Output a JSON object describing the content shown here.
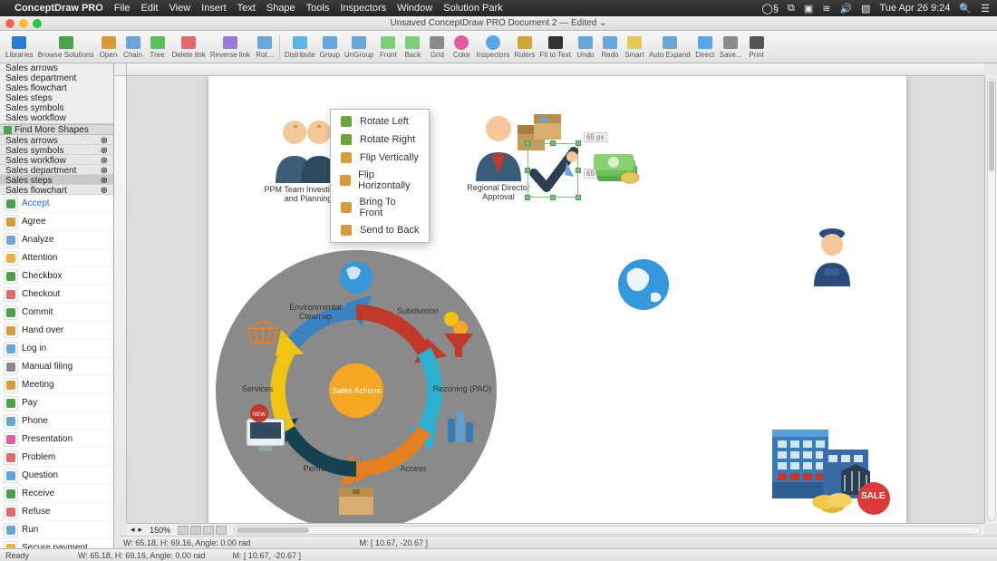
{
  "menubar": {
    "app": "ConceptDraw PRO",
    "items": [
      "File",
      "Edit",
      "View",
      "Insert",
      "Text",
      "Shape",
      "Tools",
      "Inspectors",
      "Window",
      "Solution Park"
    ],
    "clock": "Tue Apr 26  9:24"
  },
  "doc_title": "Unsaved ConceptDraw PRO Document 2 — Edited ⌄",
  "toolbar": [
    {
      "label": "Libraries",
      "color": "#2a7bd4"
    },
    {
      "label": "Browse Solutions",
      "color": "#4aa34a"
    },
    {
      "label": "Open",
      "color": "#d79b3a"
    },
    {
      "label": "Chain",
      "color": "#6aa6d8"
    },
    {
      "label": "Tree",
      "color": "#5bbf5b"
    },
    {
      "label": "Delete link",
      "color": "#e06a6a"
    },
    {
      "label": "Reverse link",
      "color": "#9a7bd4"
    },
    {
      "label": "Rot...",
      "color": "#6aa6d8"
    },
    {
      "label": "",
      "color": "#777",
      "sep": true
    },
    {
      "label": "Distribute",
      "color": "#5bb5e0"
    },
    {
      "label": "Group",
      "color": "#6aa6d8"
    },
    {
      "label": "UnGroup",
      "color": "#6aa6d8"
    },
    {
      "label": "Front",
      "color": "#7bcf7b"
    },
    {
      "label": "Back",
      "color": "#7bcf7b"
    },
    {
      "label": "Grid",
      "color": "#8a8a8a"
    },
    {
      "label": "Color",
      "color": "#e65aa5",
      "round": true
    },
    {
      "label": "Inspectors",
      "color": "#5aa5e6",
      "round": true
    },
    {
      "label": "Rulers",
      "color": "#d0a43a"
    },
    {
      "label": "Fit to Text",
      "color": "#333"
    },
    {
      "label": "Undo",
      "color": "#6aa6d8"
    },
    {
      "label": "Redo",
      "color": "#6aa6d8"
    },
    {
      "label": "Smart",
      "color": "#e6c85a"
    },
    {
      "label": "Auto Expand",
      "color": "#6aa6d8"
    },
    {
      "label": "Direct",
      "color": "#5aa5e6"
    },
    {
      "label": "Save...",
      "color": "#8a8a8a"
    },
    {
      "label": "Print",
      "color": "#555"
    }
  ],
  "library_tree": [
    "Sales arrows",
    "Sales department",
    "Sales flowchart",
    "Sales steps",
    "Sales symbols",
    "Sales workflow"
  ],
  "find_more": "Find More Shapes",
  "library_cats": [
    {
      "name": "Sales arrows"
    },
    {
      "name": "Sales symbols"
    },
    {
      "name": "Sales workflow"
    },
    {
      "name": "Sales department"
    },
    {
      "name": "Sales steps",
      "sel": true
    },
    {
      "name": "Sales flowchart"
    }
  ],
  "shapes": [
    {
      "name": "Accept",
      "sel": true,
      "c": "#4aa34a"
    },
    {
      "name": "Agree",
      "c": "#d79b3a"
    },
    {
      "name": "Analyze",
      "c": "#6aa6d8"
    },
    {
      "name": "Attention",
      "c": "#e6b23a"
    },
    {
      "name": "Checkbox",
      "c": "#4aa34a"
    },
    {
      "name": "Checkout",
      "c": "#e06a6a"
    },
    {
      "name": "Commit",
      "c": "#4aa34a"
    },
    {
      "name": "Hand over",
      "c": "#d79b3a"
    },
    {
      "name": "Log in",
      "c": "#6aa6d8"
    },
    {
      "name": "Manual filing",
      "c": "#8a8a8a"
    },
    {
      "name": "Meeting",
      "c": "#d79b3a"
    },
    {
      "name": "Pay",
      "c": "#4aa34a"
    },
    {
      "name": "Phone",
      "c": "#6aa6d8"
    },
    {
      "name": "Presentation",
      "c": "#e65aa5"
    },
    {
      "name": "Problem",
      "c": "#e06a6a"
    },
    {
      "name": "Question",
      "c": "#5aa5e6"
    },
    {
      "name": "Receive",
      "c": "#4aa34a"
    },
    {
      "name": "Refuse",
      "c": "#e06a6a"
    },
    {
      "name": "Run",
      "c": "#6aa6d8"
    },
    {
      "name": "Secure payment",
      "c": "#e6b23a"
    }
  ],
  "context_menu": [
    "Rotate Left",
    "Rotate Right",
    "Flip Vertically",
    "Flip Horizontally",
    "Bring To Front",
    "Send to Back"
  ],
  "context_colors": [
    "#6aa63a",
    "#6aa63a",
    "#d79b3a",
    "#d79b3a",
    "#d79b3a",
    "#d79b3a"
  ],
  "zoom": "150%",
  "status_left": "W: 65.18,  H: 69.16,    Angle: 0.00 rad",
  "status_mid": "M: [ 10.67, -20.67 ]",
  "status_ready": "Ready",
  "canvas": {
    "ppm_label1": "PPM Team Investigation",
    "ppm_label2": "and Planning",
    "regional_label": "Regional Director Approval",
    "dim1": "65 px",
    "dim2": "65 px",
    "cycle_center": "Sales Actions",
    "cycle_labels": [
      "Subdivision",
      "Rezoning (PAO)",
      "Access",
      "Permits",
      "Services",
      "Environmental Clean up"
    ],
    "cycle_arrow_colors": [
      "#c0392b",
      "#2bb1cf",
      "#e67e22",
      "#16414f",
      "#f1c40f",
      "#3b83c0"
    ],
    "cycle_center_color": "#f5a623",
    "sale_badge": "SALE"
  }
}
